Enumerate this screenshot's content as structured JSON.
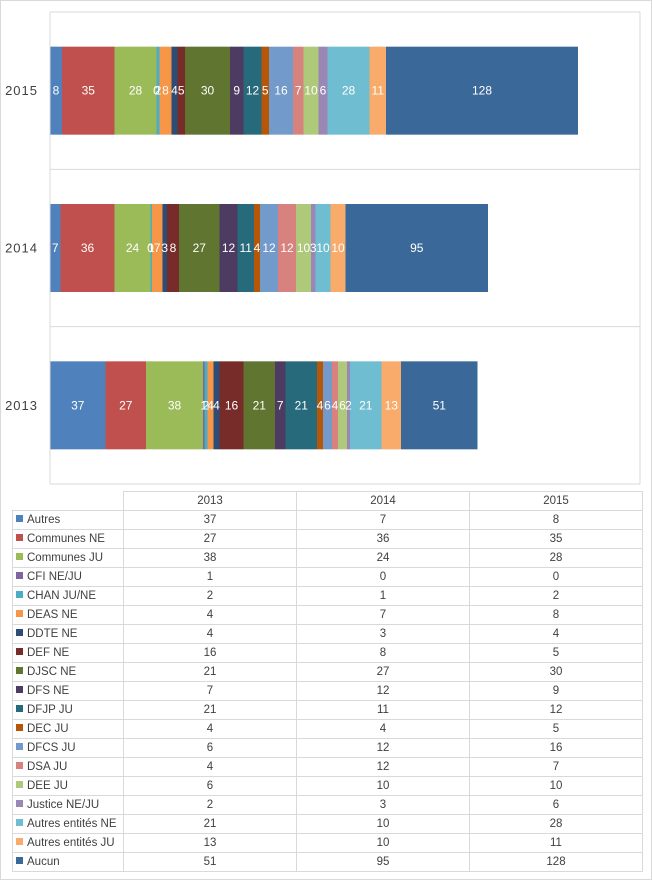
{
  "chart_data": {
    "type": "bar",
    "orientation": "horizontal",
    "stacked": true,
    "categories": [
      "2015",
      "2014",
      "2013"
    ],
    "xlim": [
      0,
      380
    ],
    "legend": "table-below",
    "series": [
      {
        "name": "Autres",
        "color": "#4f81bd",
        "values": [
          8,
          7,
          37
        ]
      },
      {
        "name": "Communes NE",
        "color": "#c0504d",
        "values": [
          35,
          36,
          27
        ]
      },
      {
        "name": "Communes JU",
        "color": "#9bbb59",
        "values": [
          28,
          24,
          38
        ]
      },
      {
        "name": "CFI NE/JU",
        "color": "#8064a2",
        "values": [
          0,
          0,
          1
        ]
      },
      {
        "name": "CHAN JU/NE",
        "color": "#4bacc6",
        "values": [
          2,
          1,
          2
        ]
      },
      {
        "name": "DEAS NE",
        "color": "#f79646",
        "values": [
          8,
          7,
          4
        ]
      },
      {
        "name": "DDTE NE",
        "color": "#2c4d75",
        "values": [
          4,
          3,
          4
        ]
      },
      {
        "name": "DEF NE",
        "color": "#772c2a",
        "values": [
          5,
          8,
          16
        ]
      },
      {
        "name": "DJSC NE",
        "color": "#5f7530",
        "values": [
          30,
          27,
          21
        ]
      },
      {
        "name": "DFS NE",
        "color": "#4d3b62",
        "values": [
          9,
          12,
          7
        ]
      },
      {
        "name": "DFJP JU",
        "color": "#276a7c",
        "values": [
          12,
          11,
          21
        ]
      },
      {
        "name": "DEC JU",
        "color": "#b65708",
        "values": [
          5,
          4,
          4
        ]
      },
      {
        "name": "DFCS JU",
        "color": "#729aca",
        "values": [
          16,
          12,
          6
        ]
      },
      {
        "name": "DSA JU",
        "color": "#d88280",
        "values": [
          7,
          12,
          4
        ]
      },
      {
        "name": "DEE JU",
        "color": "#afc97a",
        "values": [
          10,
          10,
          6
        ]
      },
      {
        "name": "Justice NE/JU",
        "color": "#9a87b5",
        "values": [
          6,
          3,
          2
        ]
      },
      {
        "name": "Autres entités NE",
        "color": "#6fbdd1",
        "values": [
          28,
          10,
          21
        ]
      },
      {
        "name": "Autres entités JU",
        "color": "#f9ab6b",
        "values": [
          11,
          10,
          13
        ]
      },
      {
        "name": "Aucun",
        "color": "#3a6899",
        "values": [
          128,
          95,
          51
        ]
      }
    ]
  },
  "table": {
    "years": [
      "2013",
      "2014",
      "2015"
    ],
    "rows": [
      {
        "label": "Autres",
        "color": "#4f81bd",
        "values": [
          37,
          7,
          8
        ]
      },
      {
        "label": "Communes NE",
        "color": "#c0504d",
        "values": [
          27,
          36,
          35
        ]
      },
      {
        "label": "Communes JU",
        "color": "#9bbb59",
        "values": [
          38,
          24,
          28
        ]
      },
      {
        "label": "CFI NE/JU",
        "color": "#8064a2",
        "values": [
          1,
          0,
          0
        ]
      },
      {
        "label": "CHAN JU/NE",
        "color": "#4bacc6",
        "values": [
          2,
          1,
          2
        ]
      },
      {
        "label": "DEAS NE",
        "color": "#f79646",
        "values": [
          4,
          7,
          8
        ]
      },
      {
        "label": "DDTE NE",
        "color": "#2c4d75",
        "values": [
          4,
          3,
          4
        ]
      },
      {
        "label": "DEF NE",
        "color": "#772c2a",
        "values": [
          16,
          8,
          5
        ]
      },
      {
        "label": "DJSC NE",
        "color": "#5f7530",
        "values": [
          21,
          27,
          30
        ]
      },
      {
        "label": "DFS NE",
        "color": "#4d3b62",
        "values": [
          7,
          12,
          9
        ]
      },
      {
        "label": "DFJP JU",
        "color": "#276a7c",
        "values": [
          21,
          11,
          12
        ]
      },
      {
        "label": "DEC JU",
        "color": "#b65708",
        "values": [
          4,
          4,
          5
        ]
      },
      {
        "label": "DFCS JU",
        "color": "#729aca",
        "values": [
          6,
          12,
          16
        ]
      },
      {
        "label": "DSA JU",
        "color": "#d88280",
        "values": [
          4,
          12,
          7
        ]
      },
      {
        "label": "DEE JU",
        "color": "#afc97a",
        "values": [
          6,
          10,
          10
        ]
      },
      {
        "label": "Justice NE/JU",
        "color": "#9a87b5",
        "values": [
          2,
          3,
          6
        ]
      },
      {
        "label": "Autres entités NE",
        "color": "#6fbdd1",
        "values": [
          21,
          10,
          28
        ]
      },
      {
        "label": "Autres entités JU",
        "color": "#f9ab6b",
        "values": [
          13,
          10,
          11
        ]
      },
      {
        "label": "Aucun",
        "color": "#3a6899",
        "values": [
          51,
          95,
          128
        ]
      }
    ]
  }
}
